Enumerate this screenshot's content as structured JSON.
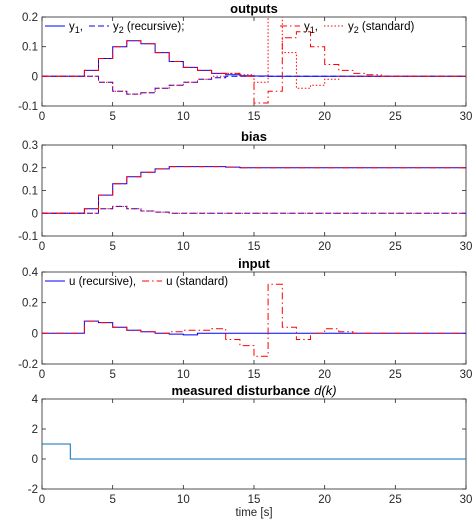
{
  "chart_data": [
    {
      "type": "line",
      "title": "outputs",
      "xlim": [
        0,
        30
      ],
      "ylim": [
        -0.1,
        0.2
      ],
      "xticks": [
        0,
        5,
        10,
        15,
        20,
        25,
        30
      ],
      "yticks": [
        -0.1,
        0,
        0.1,
        0.2
      ],
      "ytick_labels": [
        "-0.1",
        "0",
        "0.1",
        "0.2"
      ],
      "grid": false,
      "legend": {
        "placement": "top",
        "entries": [
          {
            "series": 0,
            "base": "y",
            "sub": "1",
            "after": ","
          },
          {
            "series": 1,
            "base": "y",
            "sub": "2",
            "after": " (recursive);"
          },
          {
            "series": 2,
            "base": "y",
            "sub": "1",
            "after": ","
          },
          {
            "series": 3,
            "base": "y",
            "sub": "2",
            "after": " (standard)"
          }
        ]
      },
      "series": [
        {
          "color": "#0000ff",
          "dash": "solid",
          "x": [
            0,
            1,
            2,
            3,
            4,
            5,
            6,
            7,
            8,
            9,
            10,
            11,
            12,
            13,
            14,
            15,
            16,
            17,
            18,
            19,
            20,
            21,
            22,
            23,
            24,
            25,
            26,
            27,
            28,
            29,
            30
          ],
          "y": [
            0,
            0,
            0,
            0.02,
            0.06,
            0.1,
            0.12,
            0.11,
            0.08,
            0.05,
            0.03,
            0.02,
            0.01,
            0.005,
            0.002,
            0.001,
            0,
            0,
            0,
            0,
            0,
            0,
            0,
            0,
            0,
            0,
            0,
            0,
            0,
            0,
            0
          ]
        },
        {
          "color": "#0000ff",
          "dash": "dash",
          "x": [
            0,
            1,
            2,
            3,
            4,
            5,
            6,
            7,
            8,
            9,
            10,
            11,
            12,
            13,
            14,
            15,
            16,
            17,
            18,
            19,
            20,
            21,
            22,
            23,
            24,
            25,
            26,
            27,
            28,
            29,
            30
          ],
          "y": [
            0,
            0,
            0,
            0,
            -0.02,
            -0.05,
            -0.06,
            -0.055,
            -0.04,
            -0.03,
            -0.02,
            -0.01,
            -0.005,
            0,
            0,
            0,
            0,
            0,
            0,
            0,
            0,
            0,
            0,
            0,
            0,
            0,
            0,
            0,
            0,
            0,
            0
          ]
        },
        {
          "color": "#ff0000",
          "dash": "dashdot",
          "x": [
            0,
            1,
            2,
            3,
            4,
            5,
            6,
            7,
            8,
            9,
            10,
            11,
            12,
            13,
            14,
            15,
            16,
            17,
            18,
            19,
            20,
            21,
            22,
            23,
            24,
            25,
            26,
            27,
            28,
            29,
            30
          ],
          "y": [
            0,
            0,
            0,
            0.02,
            0.06,
            0.1,
            0.12,
            0.11,
            0.08,
            0.05,
            0.03,
            0.02,
            0.01,
            0.01,
            0,
            -0.09,
            -0.05,
            0.13,
            0.15,
            0.1,
            0.04,
            0.02,
            0.01,
            0.005,
            0,
            0,
            0,
            0,
            0,
            0,
            0
          ]
        },
        {
          "color": "#ff0000",
          "dash": "dot",
          "x": [
            0,
            1,
            2,
            3,
            4,
            5,
            6,
            7,
            8,
            9,
            10,
            11,
            12,
            13,
            14,
            15,
            16,
            17,
            18,
            19,
            20,
            21,
            22,
            23,
            24,
            25,
            26,
            27,
            28,
            29,
            30
          ],
          "y": [
            0,
            0,
            0,
            0,
            -0.02,
            -0.05,
            -0.06,
            -0.055,
            -0.04,
            -0.03,
            -0.02,
            -0.01,
            0,
            0.01,
            0.005,
            -0.02,
            0.22,
            0.08,
            -0.04,
            -0.03,
            -0.01,
            0,
            0,
            0,
            0,
            0,
            0,
            0,
            0,
            0,
            0
          ]
        }
      ]
    },
    {
      "type": "line",
      "title": "bias",
      "xlim": [
        0,
        30
      ],
      "ylim": [
        -0.1,
        0.3
      ],
      "xticks": [
        0,
        5,
        10,
        15,
        20,
        25,
        30
      ],
      "yticks": [
        -0.1,
        0,
        0.1,
        0.2,
        0.3
      ],
      "ytick_labels": [
        "-0.1",
        "0",
        "0.1",
        "0.2",
        "0.3"
      ],
      "grid": false,
      "series": [
        {
          "color": "#0000ff",
          "dash": "solid",
          "x": [
            0,
            1,
            2,
            3,
            4,
            5,
            6,
            7,
            8,
            9,
            10,
            11,
            12,
            13,
            14,
            15,
            16,
            30
          ],
          "y": [
            0,
            0,
            0,
            0.02,
            0.08,
            0.13,
            0.16,
            0.18,
            0.195,
            0.205,
            0.205,
            0.205,
            0.205,
            0.203,
            0.2,
            0.2,
            0.2,
            0.2
          ]
        },
        {
          "color": "#0000ff",
          "dash": "dash",
          "x": [
            0,
            1,
            2,
            3,
            4,
            5,
            6,
            7,
            8,
            9,
            10,
            11,
            12,
            13,
            14,
            15,
            16,
            30
          ],
          "y": [
            0,
            0,
            0,
            0,
            0.02,
            0.03,
            0.02,
            0.01,
            0.005,
            0,
            0,
            0,
            0,
            0,
            0,
            0,
            0,
            0
          ]
        },
        {
          "color": "#ff0000",
          "dash": "dashdot",
          "x": [
            0,
            1,
            2,
            3,
            4,
            5,
            6,
            7,
            8,
            9,
            10,
            11,
            12,
            13,
            14,
            15,
            16,
            30
          ],
          "y": [
            0,
            0,
            0,
            0.02,
            0.08,
            0.13,
            0.16,
            0.18,
            0.195,
            0.205,
            0.205,
            0.205,
            0.205,
            0.203,
            0.2,
            0.2,
            0.2,
            0.2
          ]
        },
        {
          "color": "#ff0000",
          "dash": "dot",
          "x": [
            0,
            1,
            2,
            3,
            4,
            5,
            6,
            7,
            8,
            9,
            10,
            11,
            12,
            13,
            14,
            15,
            16,
            30
          ],
          "y": [
            0,
            0,
            0,
            0,
            0.02,
            0.03,
            0.02,
            0.01,
            0.005,
            0,
            0,
            0,
            0,
            0,
            0,
            0,
            0,
            0
          ]
        }
      ]
    },
    {
      "type": "line",
      "title": "input",
      "xlim": [
        0,
        30
      ],
      "ylim": [
        -0.2,
        0.4
      ],
      "xticks": [
        0,
        5,
        10,
        15,
        20,
        25,
        30
      ],
      "yticks": [
        -0.2,
        0,
        0.2,
        0.4
      ],
      "ytick_labels": [
        "-0.2",
        "0",
        "0.2",
        "0.4"
      ],
      "grid": false,
      "legend": {
        "placement": "top",
        "entries": [
          {
            "series": 0,
            "text": "u (recursive),"
          },
          {
            "series": 1,
            "text": "u (standard)"
          }
        ]
      },
      "series": [
        {
          "color": "#0000ff",
          "dash": "solid",
          "x": [
            0,
            1,
            2,
            3,
            4,
            5,
            6,
            7,
            8,
            9,
            10,
            11,
            12,
            13,
            14,
            15,
            16,
            17,
            18,
            19,
            20,
            30
          ],
          "y": [
            0,
            0,
            0,
            0.08,
            0.07,
            0.04,
            0.02,
            0.01,
            0,
            -0.005,
            -0.01,
            0,
            0,
            0,
            0,
            0,
            0,
            0,
            0,
            0,
            0,
            0
          ]
        },
        {
          "color": "#ff0000",
          "dash": "dashdot",
          "x": [
            0,
            1,
            2,
            3,
            4,
            5,
            6,
            7,
            8,
            9,
            10,
            11,
            12,
            13,
            14,
            15,
            16,
            17,
            18,
            19,
            20,
            21,
            22,
            30
          ],
          "y": [
            0,
            0,
            0,
            0.08,
            0.07,
            0.04,
            0.02,
            0.01,
            0,
            0.01,
            0.02,
            0.02,
            0.03,
            -0.04,
            -0.08,
            -0.15,
            0.32,
            0.04,
            -0.04,
            0,
            0.03,
            0.01,
            0,
            0
          ]
        }
      ]
    },
    {
      "type": "line",
      "title": "measured disturbance",
      "title_suffix": "d(k)",
      "xlabel": "time [s]",
      "xlim": [
        0,
        30
      ],
      "ylim": [
        -2,
        4
      ],
      "xticks": [
        0,
        5,
        10,
        15,
        20,
        25,
        30
      ],
      "yticks": [
        -2,
        0,
        2,
        4
      ],
      "ytick_labels": [
        "-2",
        "0",
        "2",
        "4"
      ],
      "grid": false,
      "series": [
        {
          "color": "#0072bd",
          "dash": "solid",
          "x": [
            0,
            1,
            2,
            30
          ],
          "y": [
            1,
            1,
            0,
            0
          ]
        }
      ]
    }
  ]
}
